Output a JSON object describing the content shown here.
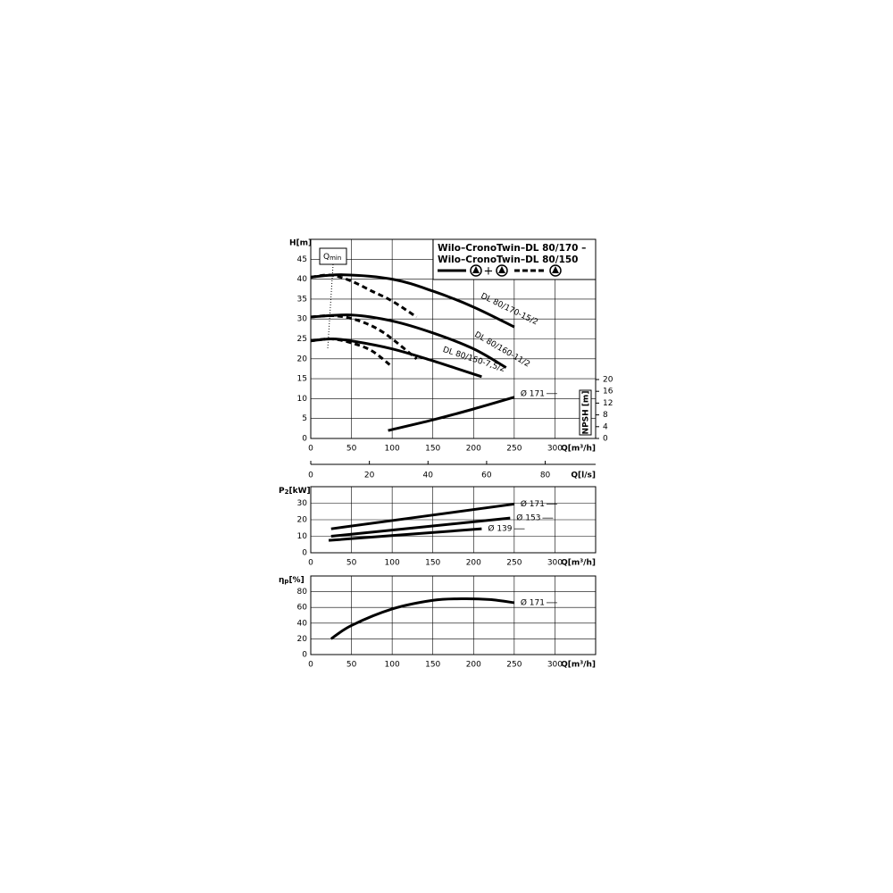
{
  "chart_data": [
    {
      "type": "line",
      "title_lines": [
        "Wilo–CronoTwin–DL 80/170 –",
        "Wilo–CronoTwin–DL 80/150"
      ],
      "legend_plus": "+",
      "ylabel": "H[m]",
      "xlabel": "Q[m³/h]",
      "x2label": "Q[l/s]",
      "y2label": "NPSH [m]",
      "annotation": {
        "text": "Q",
        "subscript": "min"
      },
      "xlim": [
        0,
        350
      ],
      "xticks": [
        0,
        50,
        100,
        150,
        200,
        250,
        300
      ],
      "ylim": [
        0,
        50
      ],
      "yticks": [
        0,
        5,
        10,
        15,
        20,
        25,
        30,
        35,
        40,
        45
      ],
      "x2lim": [
        0,
        97.2
      ],
      "x2ticks": [
        0,
        20,
        40,
        60,
        80
      ],
      "y2lim": [
        0,
        20
      ],
      "y2ticks": [
        0,
        4,
        8,
        12,
        16,
        20
      ],
      "grid": true,
      "series": [
        {
          "name": "DL 80/170-15/2",
          "color": "#000000",
          "dashed": false,
          "x": [
            0,
            40,
            100,
            150,
            200,
            250
          ],
          "values": [
            40.5,
            41.1,
            40,
            37,
            33,
            28
          ]
        },
        {
          "color": "#000000",
          "dashed": true,
          "x": [
            0,
            25,
            50,
            75,
            100,
            130
          ],
          "values": [
            40.5,
            41,
            39.5,
            37,
            34.5,
            30.5
          ]
        },
        {
          "name": "DL 80/160-11/2",
          "color": "#000000",
          "dashed": false,
          "x": [
            0,
            50,
            100,
            150,
            200,
            240
          ],
          "values": [
            30.5,
            31,
            29.5,
            26.5,
            22.5,
            17.8
          ]
        },
        {
          "color": "#000000",
          "dashed": true,
          "x": [
            0,
            30,
            60,
            90,
            130
          ],
          "values": [
            30.5,
            30.8,
            29.5,
            26.5,
            20
          ]
        },
        {
          "name": "DL 80/150-7,5/2",
          "color": "#000000",
          "dashed": false,
          "x": [
            0,
            25,
            50,
            100,
            150,
            210
          ],
          "values": [
            24.5,
            25,
            24.5,
            22.5,
            19.5,
            15.5
          ]
        },
        {
          "color": "#000000",
          "dashed": true,
          "x": [
            0,
            25,
            50,
            75,
            100
          ],
          "values": [
            24.5,
            25,
            24,
            22,
            18
          ]
        },
        {
          "name": "Ø 171",
          "axis": "y2",
          "color": "#000000",
          "dashed": false,
          "x": [
            95,
            150,
            200,
            250
          ],
          "values": [
            2.7,
            6.3,
            10,
            14
          ]
        }
      ]
    },
    {
      "type": "line",
      "ylabel": {
        "symbol": "P",
        "subscript": "2",
        "unit": "[kW]"
      },
      "xlabel": "Q[m³/h]",
      "xlim": [
        0,
        350
      ],
      "xticks": [
        0,
        50,
        100,
        150,
        200,
        250,
        300
      ],
      "ylim": [
        0,
        40
      ],
      "yticks": [
        0,
        10,
        20,
        30
      ],
      "grid": true,
      "series": [
        {
          "name": "Ø 171",
          "color": "#000000",
          "x": [
            25,
            250
          ],
          "values": [
            14.5,
            29.5
          ]
        },
        {
          "name": "Ø 153",
          "color": "#000000",
          "x": [
            25,
            245
          ],
          "values": [
            10,
            21
          ]
        },
        {
          "name": "Ø 139",
          "color": "#000000",
          "x": [
            22,
            210
          ],
          "values": [
            7.5,
            14.5
          ]
        }
      ]
    },
    {
      "type": "line",
      "ylabel": {
        "symbol": "η",
        "subscript": "p",
        "unit": "[%]"
      },
      "xlabel": "Q[m³/h]",
      "xlim": [
        0,
        350
      ],
      "xticks": [
        0,
        50,
        100,
        150,
        200,
        250,
        300
      ],
      "ylim": [
        0,
        100
      ],
      "yticks": [
        0,
        20,
        40,
        60,
        80
      ],
      "grid": true,
      "series": [
        {
          "name": "Ø 171",
          "color": "#000000",
          "x": [
            25,
            50,
            100,
            150,
            185,
            220,
            250
          ],
          "values": [
            20,
            37,
            58,
            69,
            71,
            70,
            66
          ]
        }
      ]
    }
  ]
}
